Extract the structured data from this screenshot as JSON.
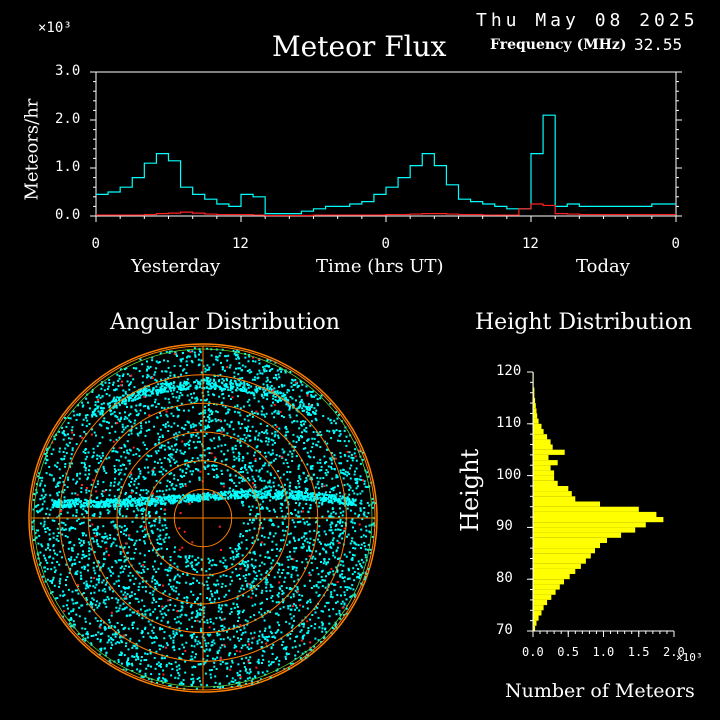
{
  "header": {
    "date": "Thu May 08 2025",
    "frequency_label": "Frequency (MHz)",
    "frequency_value": "32.55"
  },
  "colors": {
    "cyan": "#00ffff",
    "red": "#ff2020",
    "yellow": "#ffff00",
    "orange": "#ff8000",
    "green": "#66cc33"
  },
  "chart_data": [
    {
      "type": "line",
      "title": "Meteor Flux",
      "ylabel": "Meteors/hr",
      "xlabel": "Time (hrs UT)",
      "y_multiplier": "×10³",
      "yticks": [
        "0.0",
        "1.0",
        "2.0",
        "3.0"
      ],
      "ylim": [
        0,
        3
      ],
      "xticks": [
        "0",
        "12",
        "0",
        "12",
        "0"
      ],
      "day_labels": [
        "Yesterday",
        "Today"
      ],
      "x_hours": [
        0,
        1,
        2,
        3,
        4,
        5,
        6,
        7,
        8,
        9,
        10,
        11,
        12,
        13,
        14,
        15,
        16,
        17,
        18,
        19,
        20,
        21,
        22,
        23,
        24,
        25,
        26,
        27,
        28,
        29,
        30,
        31,
        32,
        33,
        34,
        35,
        36,
        37,
        38,
        39,
        40,
        41,
        42,
        43,
        44,
        45,
        46,
        47
      ],
      "series": [
        {
          "color": "cyan",
          "values": [
            0.45,
            0.5,
            0.6,
            0.8,
            1.1,
            1.3,
            1.15,
            0.6,
            0.45,
            0.35,
            0.25,
            0.2,
            0.45,
            0.4,
            0.05,
            0.05,
            0.05,
            0.1,
            0.15,
            0.2,
            0.2,
            0.25,
            0.3,
            0.45,
            0.6,
            0.8,
            1.05,
            1.3,
            1.05,
            0.65,
            0.35,
            0.3,
            0.25,
            0.2,
            0.15,
            0.15,
            1.3,
            2.1,
            0.2,
            0.25,
            0.2,
            0.2,
            0.2,
            0.2,
            0.2,
            0.2,
            0.25,
            0.25
          ]
        },
        {
          "color": "red",
          "values": [
            0.02,
            0.02,
            0.02,
            0.02,
            0.03,
            0.05,
            0.06,
            0.08,
            0.06,
            0.04,
            0.03,
            0.03,
            0.03,
            0.02,
            0.01,
            0.01,
            0.01,
            0.01,
            0.02,
            0.02,
            0.02,
            0.02,
            0.02,
            0.02,
            0.03,
            0.03,
            0.04,
            0.05,
            0.05,
            0.04,
            0.03,
            0.03,
            0.02,
            0.02,
            0.02,
            0.15,
            0.25,
            0.22,
            0.05,
            0.04,
            0.03,
            0.03,
            0.03,
            0.03,
            0.03,
            0.03,
            0.03,
            0.03
          ]
        }
      ]
    },
    {
      "type": "scatter",
      "title": "Angular Distribution",
      "rings": 6
    },
    {
      "type": "bar",
      "orientation": "horizontal",
      "title": "Height Distribution",
      "ylabel": "Height",
      "xlabel": "Number of Meteors",
      "x_multiplier": "×10³",
      "xticks": [
        "0.0",
        "0.5",
        "1.0",
        "1.5",
        "2.0"
      ],
      "xlim": [
        0,
        2
      ],
      "yticks": [
        "120",
        "110",
        "100",
        "90",
        "80",
        "70"
      ],
      "ylim": [
        70,
        120
      ],
      "heights": [
        70,
        71,
        72,
        73,
        74,
        75,
        76,
        77,
        78,
        79,
        80,
        81,
        82,
        83,
        84,
        85,
        86,
        87,
        88,
        89,
        90,
        91,
        92,
        93,
        94,
        95,
        96,
        97,
        98,
        99,
        100,
        101,
        102,
        103,
        104,
        105,
        106,
        107,
        108,
        109,
        110,
        111,
        112,
        113,
        114,
        115,
        116,
        117,
        118,
        119
      ],
      "values": [
        0.03,
        0.05,
        0.08,
        0.12,
        0.15,
        0.2,
        0.26,
        0.32,
        0.38,
        0.44,
        0.52,
        0.6,
        0.68,
        0.75,
        0.82,
        0.88,
        0.95,
        1.05,
        1.25,
        1.45,
        1.6,
        1.85,
        1.75,
        1.5,
        0.95,
        0.6,
        0.55,
        0.5,
        0.35,
        0.3,
        0.3,
        0.25,
        0.35,
        0.22,
        0.45,
        0.28,
        0.25,
        0.2,
        0.15,
        0.12,
        0.08,
        0.06,
        0.05,
        0.04,
        0.03,
        0.02,
        0.02,
        0.01,
        0.01,
        0.01
      ]
    }
  ]
}
